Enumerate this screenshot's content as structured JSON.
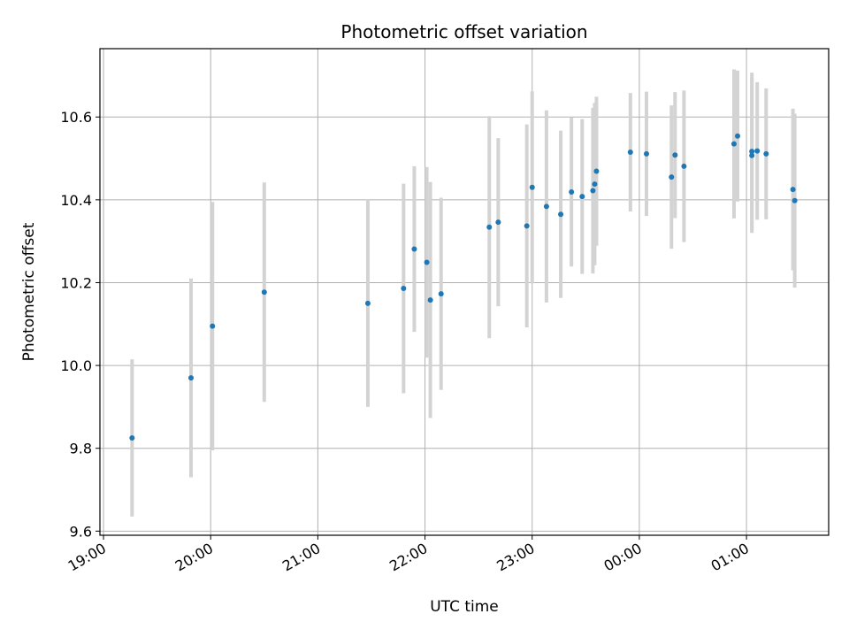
{
  "chart_data": {
    "type": "scatter",
    "title": "Photometric offset variation",
    "xlabel": "UTC time",
    "ylabel": "Photometric offset",
    "xlim": [
      "18:58",
      "01:46"
    ],
    "ylim": [
      9.59,
      10.765
    ],
    "x_ticks": [
      "19:00",
      "20:00",
      "21:00",
      "22:00",
      "23:00",
      "00:00",
      "01:00"
    ],
    "y_ticks": [
      "9.6",
      "9.8",
      "10.0",
      "10.2",
      "10.4",
      "10.6"
    ],
    "grid": true,
    "point_color": "#1f77b4",
    "errorbar_color": "#d3d3d3",
    "points": [
      {
        "t": "19:16",
        "y": 9.825,
        "err": 0.19
      },
      {
        "t": "19:49",
        "y": 9.97,
        "err": 0.24
      },
      {
        "t": "20:01",
        "y": 10.095,
        "err": 0.3
      },
      {
        "t": "20:30",
        "y": 10.177,
        "err": 0.265
      },
      {
        "t": "21:28",
        "y": 10.15,
        "err": 0.25
      },
      {
        "t": "21:48",
        "y": 10.186,
        "err": 0.253
      },
      {
        "t": "21:54",
        "y": 10.281,
        "err": 0.2
      },
      {
        "t": "22:01",
        "y": 10.249,
        "err": 0.23
      },
      {
        "t": "22:03",
        "y": 10.158,
        "err": 0.285
      },
      {
        "t": "22:09",
        "y": 10.173,
        "err": 0.232
      },
      {
        "t": "22:36",
        "y": 10.334,
        "err": 0.268
      },
      {
        "t": "22:41",
        "y": 10.346,
        "err": 0.203
      },
      {
        "t": "22:57",
        "y": 10.337,
        "err": 0.245
      },
      {
        "t": "22:60",
        "y": 10.43,
        "err": 0.232
      },
      {
        "t": "23:08",
        "y": 10.384,
        "err": 0.232
      },
      {
        "t": "23:16",
        "y": 10.365,
        "err": 0.202
      },
      {
        "t": "23:22",
        "y": 10.419,
        "err": 0.18
      },
      {
        "t": "23:28",
        "y": 10.408,
        "err": 0.187
      },
      {
        "t": "23:34",
        "y": 10.422,
        "err": 0.2
      },
      {
        "t": "23:35",
        "y": 10.438,
        "err": 0.196
      },
      {
        "t": "23:36",
        "y": 10.469,
        "err": 0.18
      },
      {
        "t": "23:55",
        "y": 10.515,
        "err": 0.143
      },
      {
        "t": "00:04",
        "y": 10.511,
        "err": 0.15
      },
      {
        "t": "00:18",
        "y": 10.455,
        "err": 0.173
      },
      {
        "t": "00:20",
        "y": 10.508,
        "err": 0.152
      },
      {
        "t": "00:25",
        "y": 10.481,
        "err": 0.183
      },
      {
        "t": "00:53",
        "y": 10.535,
        "err": 0.18
      },
      {
        "t": "00:55",
        "y": 10.554,
        "err": 0.158
      },
      {
        "t": "01:03",
        "y": 10.507,
        "err": 0.187
      },
      {
        "t": "01:03",
        "y": 10.517,
        "err": 0.19
      },
      {
        "t": "01:06",
        "y": 10.518,
        "err": 0.166
      },
      {
        "t": "01:11",
        "y": 10.511,
        "err": 0.158
      },
      {
        "t": "01:26",
        "y": 10.425,
        "err": 0.195
      },
      {
        "t": "01:27",
        "y": 10.398,
        "err": 0.21
      }
    ]
  }
}
